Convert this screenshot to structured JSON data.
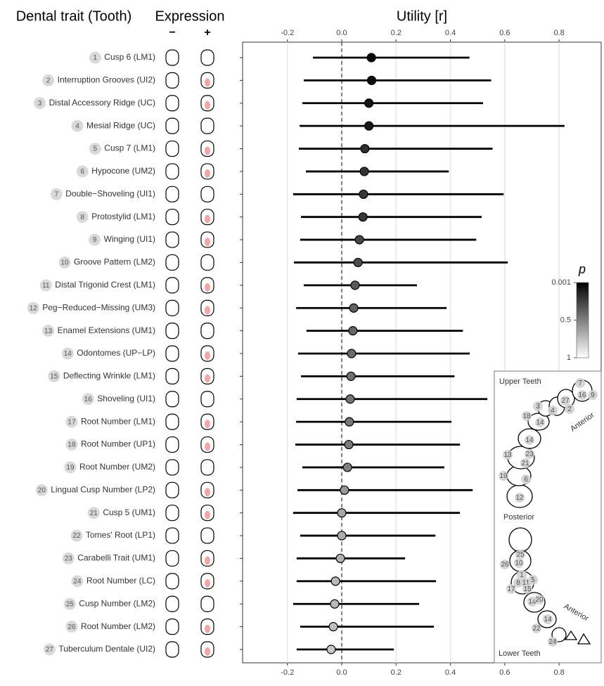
{
  "chart_data": {
    "type": "forest",
    "title": "Utility [r]",
    "row_header": "Dental trait (Tooth)",
    "expression_header": "Expression",
    "expression_minus": "−",
    "expression_plus": "+",
    "category_numbers": [
      1,
      2,
      3,
      4,
      5,
      6,
      7,
      8,
      9,
      10,
      11,
      12,
      13,
      14,
      15,
      16,
      17,
      18,
      19,
      20,
      21,
      22,
      23,
      24,
      25,
      26,
      27
    ],
    "categories": [
      "Cusp 6 (LM1)",
      "Interruption Grooves (UI2)",
      "Distal Accessory Ridge (UC)",
      "Mesial Ridge (UC)",
      "Cusp 7 (LM1)",
      "Hypocone (UM2)",
      "Double−Shoveling (UI1)",
      "Protostylid (LM1)",
      "Winging (UI1)",
      "Groove Pattern (LM2)",
      "Distal Trigonid Crest (LM1)",
      "Peg−Reduced−Missing (UM3)",
      "Enamel Extensions (UM1)",
      "Odontomes (UP−LP)",
      "Deflecting Wrinkle (LM1)",
      "Shoveling (UI1)",
      "Root Number (LM1)",
      "Root Number (UP1)",
      "Root Number (UM2)",
      "Lingual Cusp Number (LP2)",
      "Cusp 5 (UM1)",
      "Tomes' Root (LP1)",
      "Carabelli Trait (UM1)",
      "Root Number (LC)",
      "Cusp Number (LM2)",
      "Root Number (LM2)",
      "Tuberculum Dentale (UI2)"
    ],
    "values": [
      0.109,
      0.11,
      0.1,
      0.1,
      0.085,
      0.083,
      0.08,
      0.078,
      0.065,
      0.06,
      0.049,
      0.044,
      0.041,
      0.036,
      0.034,
      0.031,
      0.028,
      0.026,
      0.021,
      0.01,
      0.0,
      0.0,
      -0.005,
      -0.023,
      -0.026,
      -0.031,
      -0.039
    ],
    "ci_low": [
      -0.106,
      -0.14,
      -0.145,
      -0.155,
      -0.158,
      -0.132,
      -0.179,
      -0.15,
      -0.153,
      -0.176,
      -0.14,
      -0.168,
      -0.13,
      -0.161,
      -0.15,
      -0.166,
      -0.168,
      -0.171,
      -0.145,
      -0.163,
      -0.179,
      -0.153,
      -0.166,
      -0.166,
      -0.179,
      -0.153,
      -0.166
    ],
    "ci_high": [
      0.47,
      0.55,
      0.52,
      0.82,
      0.555,
      0.394,
      0.596,
      0.515,
      0.495,
      0.611,
      0.277,
      0.386,
      0.446,
      0.471,
      0.415,
      0.536,
      0.404,
      0.435,
      0.378,
      0.482,
      0.435,
      0.345,
      0.233,
      0.347,
      0.285,
      0.339,
      0.192
    ],
    "p": [
      0.03,
      0.05,
      0.08,
      0.1,
      0.18,
      0.2,
      0.22,
      0.22,
      0.28,
      0.3,
      0.35,
      0.38,
      0.4,
      0.42,
      0.44,
      0.45,
      0.47,
      0.48,
      0.5,
      0.6,
      0.65,
      0.68,
      0.7,
      0.72,
      0.73,
      0.75,
      0.78
    ],
    "xlim": [
      -0.365,
      0.955
    ],
    "xticks": [
      -0.2,
      {
        "value": 0,
        "label": "0.0"
      },
      0.2,
      0.4,
      0.6,
      0.8
    ],
    "reference_line": 0,
    "grid": true,
    "colorbar": {
      "title": "p",
      "lim": [
        0.001,
        1
      ],
      "ticks": [
        0.001,
        0.5,
        1
      ]
    },
    "inset": {
      "upper_title": "Upper Teeth",
      "upper_direction": "Anterior",
      "middle": "Posterior",
      "lower_title": "Lower Teeth",
      "lower_direction": "Anterior",
      "upper_numbers": [
        7,
        16,
        9,
        27,
        3,
        4,
        2,
        18,
        14,
        14,
        13,
        23,
        21,
        19,
        6,
        12
      ],
      "lower_numbers": [
        25,
        10,
        26,
        1,
        5,
        8,
        11,
        15,
        17,
        14,
        20,
        14,
        22,
        24
      ]
    }
  }
}
